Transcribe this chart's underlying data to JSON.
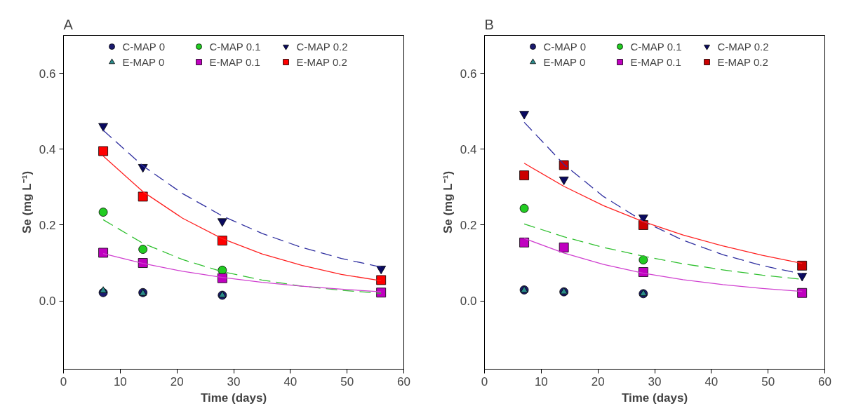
{
  "chart_data": [
    {
      "type": "scatter",
      "title": "A",
      "xlabel": "Time (days)",
      "ylabel": "Se (mg L⁻¹)",
      "x": [
        7,
        14,
        28,
        56
      ],
      "xlim": [
        0,
        60
      ],
      "ylim": [
        -0.18,
        0.7
      ],
      "xticks": [
        0,
        10,
        20,
        30,
        40,
        50,
        60
      ],
      "yticks": [
        {
          "value": 0,
          "label": "0.0"
        },
        {
          "value": 0.2,
          "label": "0.2"
        },
        {
          "value": 0.4,
          "label": "0.4"
        },
        {
          "value": 0.6,
          "label": "0.6"
        }
      ],
      "grid": false,
      "legend": "top",
      "series": [
        {
          "name": "C-MAP 0",
          "color": "#1a1a6e",
          "marker": "circle",
          "values": [
            0.022,
            0.022,
            0.015,
            null
          ]
        },
        {
          "name": "C-MAP 0.1",
          "color": "#22cc22",
          "marker": "circle",
          "values": [
            0.234,
            0.136,
            0.081,
            null
          ]
        },
        {
          "name": "C-MAP 0.2",
          "color": "#0a0a60",
          "marker": "triangle_down",
          "values": [
            0.461,
            0.353,
            0.21,
            0.085
          ]
        },
        {
          "name": "E-MAP 0",
          "color": "#2a8a8a",
          "marker": "triangle",
          "values": [
            0.027,
            0.02,
            0.015,
            null
          ]
        },
        {
          "name": "E-MAP 0.1",
          "color": "#c000c0",
          "marker": "square",
          "values": [
            0.127,
            0.1,
            0.06,
            0.022
          ]
        },
        {
          "name": "E-MAP 0.2",
          "color": "#ff0000",
          "marker": "square",
          "values": [
            0.395,
            0.275,
            0.159,
            0.055
          ]
        },
        {
          "type": "line",
          "color": "#3030a0",
          "line_style": "dashed",
          "x": [
            7,
            14,
            21,
            28,
            35,
            42,
            49,
            56
          ],
          "values": [
            0.45,
            0.356,
            0.283,
            0.224,
            0.178,
            0.141,
            0.112,
            0.089
          ]
        },
        {
          "type": "line",
          "color": "#ff2020",
          "line_style": "solid",
          "x": [
            7,
            14,
            21,
            28,
            35,
            42,
            49,
            56
          ],
          "values": [
            0.382,
            0.288,
            0.218,
            0.164,
            0.124,
            0.094,
            0.07,
            0.053
          ]
        },
        {
          "type": "line",
          "color": "#30c030",
          "line_style": "dashed",
          "x": [
            7,
            14,
            21,
            28,
            35,
            42,
            49,
            56
          ],
          "values": [
            0.214,
            0.152,
            0.109,
            0.077,
            0.055,
            0.039,
            0.028,
            0.02
          ]
        },
        {
          "type": "line",
          "color": "#d040d0",
          "line_style": "solid",
          "x": [
            7,
            14,
            21,
            28,
            35,
            42,
            49,
            56
          ],
          "values": [
            0.125,
            0.099,
            0.078,
            0.062,
            0.049,
            0.039,
            0.031,
            0.024
          ]
        }
      ]
    },
    {
      "type": "scatter",
      "title": "B",
      "xlabel": "Time (days)",
      "ylabel": "Se (mg L⁻¹)",
      "x": [
        7,
        14,
        28,
        56
      ],
      "xlim": [
        0,
        60
      ],
      "ylim": [
        -0.18,
        0.7
      ],
      "xticks": [
        0,
        10,
        20,
        30,
        40,
        50,
        60
      ],
      "yticks": [
        {
          "value": 0,
          "label": "0.0"
        },
        {
          "value": 0.2,
          "label": "0.2"
        },
        {
          "value": 0.4,
          "label": "0.4"
        },
        {
          "value": 0.6,
          "label": "0.6"
        }
      ],
      "grid": false,
      "legend": "top",
      "series": [
        {
          "name": "C-MAP 0",
          "color": "#1a1a6e",
          "marker": "circle",
          "values": [
            0.029,
            0.024,
            0.019,
            null
          ]
        },
        {
          "name": "C-MAP 0.1",
          "color": "#22cc22",
          "marker": "circle",
          "values": [
            0.244,
            null,
            0.108,
            null
          ]
        },
        {
          "name": "C-MAP 0.2",
          "color": "#0a0a60",
          "marker": "triangle_down",
          "values": [
            0.493,
            0.32,
            0.22,
            0.066
          ]
        },
        {
          "name": "E-MAP 0",
          "color": "#2a8a8a",
          "marker": "triangle",
          "values": [
            0.028,
            0.024,
            0.019,
            null
          ]
        },
        {
          "name": "E-MAP 0.1",
          "color": "#c000c0",
          "marker": "square",
          "values": [
            0.154,
            0.141,
            0.076,
            0.021
          ]
        },
        {
          "name": "E-MAP 0.2",
          "color": "#cc0000",
          "marker": "square",
          "values": [
            0.331,
            0.358,
            0.2,
            0.093
          ]
        },
        {
          "type": "line",
          "color": "#3030a0",
          "line_style": "dashed",
          "x": [
            7,
            14,
            21,
            28,
            35,
            42,
            49,
            56
          ],
          "values": [
            0.471,
            0.36,
            0.275,
            0.21,
            0.16,
            0.122,
            0.093,
            0.071
          ]
        },
        {
          "type": "line",
          "color": "#ff2020",
          "line_style": "solid",
          "x": [
            7,
            14,
            21,
            28,
            35,
            42,
            49,
            56
          ],
          "values": [
            0.363,
            0.302,
            0.251,
            0.209,
            0.174,
            0.145,
            0.12,
            0.099
          ]
        },
        {
          "type": "line",
          "color": "#30c030",
          "line_style": "dashed",
          "x": [
            7,
            14,
            21,
            28,
            35,
            42,
            49,
            56
          ],
          "values": [
            0.203,
            0.169,
            0.141,
            0.118,
            0.098,
            0.082,
            0.068,
            0.057
          ]
        },
        {
          "type": "line",
          "color": "#d040d0",
          "line_style": "solid",
          "x": [
            7,
            14,
            21,
            28,
            35,
            42,
            49,
            56
          ],
          "values": [
            0.165,
            0.126,
            0.096,
            0.073,
            0.056,
            0.043,
            0.033,
            0.025
          ]
        }
      ]
    }
  ]
}
